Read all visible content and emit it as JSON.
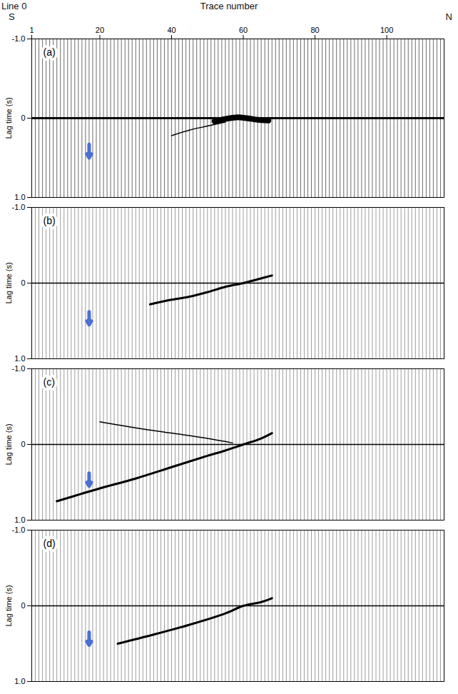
{
  "chart_data": [
    {
      "type": "wiggle",
      "panel": "(a)",
      "title": "Line 0",
      "xlabel": "Trace number",
      "annotations": [
        {
          "text": "S"
        },
        {
          "text": "N"
        }
      ],
      "ylabel": "Lag time (s)",
      "xlim": [
        1,
        116
      ],
      "xticks": [
        1,
        20,
        40,
        60,
        80,
        100
      ],
      "ylim": [
        -1.0,
        1.0
      ],
      "yticks": [
        {
          "value": -1.0,
          "label": "-1.0"
        },
        0,
        {
          "value": 1.0,
          "label": "1.0"
        }
      ],
      "events": [
        {
          "x": [
            1,
            116
          ],
          "y": [
            0,
            0
          ],
          "line_style": "bold"
        },
        {
          "x": [
            52,
            55,
            58,
            61,
            64,
            67
          ],
          "y": [
            0.04,
            0.01,
            -0.01,
            0.0,
            0.02,
            0.03
          ],
          "line_style": "thick"
        },
        {
          "x": [
            40,
            45,
            50,
            55
          ],
          "y": [
            0.22,
            0.15,
            0.1,
            0.05
          ],
          "line_style": "thin"
        }
      ],
      "arrows": [
        {
          "x": 17,
          "y": 0.5,
          "color": "#4a6fd6"
        }
      ]
    },
    {
      "type": "wiggle",
      "panel": "(b)",
      "ylabel": "Lag time (s)",
      "tick_labels": "y",
      "xlim": [
        1,
        116
      ],
      "ylim": [
        -1.0,
        1.0
      ],
      "yticks": [
        {
          "value": -1.0,
          "label": "-1.0"
        },
        0,
        {
          "value": 1.0,
          "label": "1.0"
        }
      ],
      "events": [
        {
          "x": [
            1,
            116
          ],
          "y": [
            0,
            0
          ],
          "line_style": "thin"
        },
        {
          "x": [
            34,
            40,
            45,
            50,
            55,
            60,
            64,
            68
          ],
          "y": [
            0.28,
            0.22,
            0.18,
            0.12,
            0.05,
            0.0,
            -0.05,
            -0.1
          ],
          "line_style": "bold"
        }
      ],
      "arrows": [
        {
          "x": 17,
          "y": 0.55,
          "color": "#4a6fd6"
        }
      ]
    },
    {
      "type": "wiggle",
      "panel": "(c)",
      "ylabel": "Lag time (s)",
      "tick_labels": "y",
      "xlim": [
        1,
        116
      ],
      "ylim": [
        -1.0,
        1.0
      ],
      "yticks": [
        {
          "value": -1.0,
          "label": "-1.0"
        },
        0,
        {
          "value": 1.0,
          "label": "1.0"
        }
      ],
      "events": [
        {
          "x": [
            1,
            116
          ],
          "y": [
            0,
            0
          ],
          "line_style": "thin"
        },
        {
          "x": [
            8,
            15,
            20,
            30,
            40,
            50,
            55,
            60,
            65,
            68
          ],
          "y": [
            0.75,
            0.65,
            0.58,
            0.45,
            0.3,
            0.15,
            0.08,
            0.0,
            -0.08,
            -0.15
          ],
          "line_style": "bold"
        },
        {
          "x": [
            20,
            30,
            40,
            50,
            57
          ],
          "y": [
            -0.3,
            -0.22,
            -0.15,
            -0.08,
            -0.02
          ],
          "line_style": "thin"
        }
      ],
      "arrows": [
        {
          "x": 17,
          "y": 0.55,
          "color": "#4a6fd6"
        }
      ]
    },
    {
      "type": "wiggle",
      "panel": "(d)",
      "ylabel": "Lag time (s)",
      "tick_labels": "y",
      "xlim": [
        1,
        116
      ],
      "ylim": [
        -1.0,
        1.0
      ],
      "yticks": [
        {
          "value": -1.0,
          "label": "-1.0"
        },
        0,
        {
          "value": 1.0,
          "label": "1.0"
        }
      ],
      "events": [
        {
          "x": [
            1,
            116
          ],
          "y": [
            0,
            0
          ],
          "line_style": "thin"
        },
        {
          "x": [
            25,
            35,
            45,
            55,
            60,
            65,
            68
          ],
          "y": [
            0.5,
            0.38,
            0.25,
            0.1,
            0.0,
            -0.05,
            -0.1
          ],
          "line_style": "bold"
        }
      ],
      "arrows": [
        {
          "x": 17,
          "y": 0.52,
          "color": "#4a6fd6"
        }
      ]
    }
  ]
}
